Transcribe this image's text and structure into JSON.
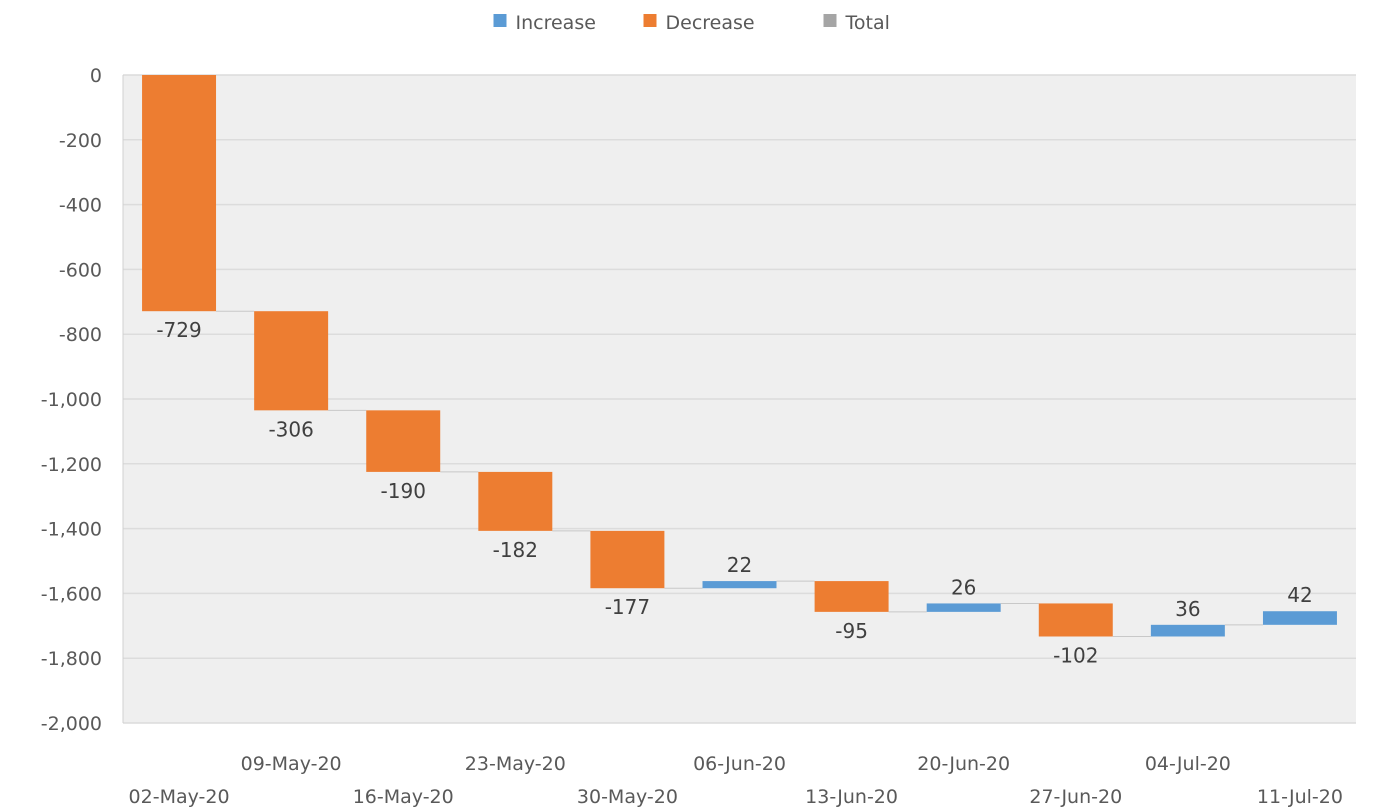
{
  "chart_data": {
    "type": "waterfall",
    "legend": [
      "Increase",
      "Decrease",
      "Total"
    ],
    "legend_position": "top",
    "colors": {
      "Increase": "#5b9bd5",
      "Decrease": "#ed7d31",
      "Total": "#a5a5a5"
    },
    "categories": [
      "02-May-20",
      "09-May-20",
      "16-May-20",
      "23-May-20",
      "30-May-20",
      "06-Jun-20",
      "13-Jun-20",
      "20-Jun-20",
      "27-Jun-20",
      "04-Jul-20",
      "11-Jul-20"
    ],
    "values": [
      -729,
      -306,
      -190,
      -182,
      -177,
      22,
      -95,
      26,
      -102,
      36,
      42
    ],
    "data_labels": [
      "-729",
      "-306",
      "-190",
      "-182",
      "-177",
      "22",
      "-95",
      "26",
      "-102",
      "36",
      "42"
    ],
    "y_ticks": [
      0,
      -200,
      -400,
      -600,
      -800,
      -1000,
      -1200,
      -1400,
      -1600,
      -1800,
      -2000
    ],
    "y_tick_labels": [
      "0",
      "-200",
      "-400",
      "-600",
      "-800",
      "-1,000",
      "-1,200",
      "-1,400",
      "-1,600",
      "-1,800",
      "-2,000"
    ],
    "ylim": [
      -2000,
      0
    ],
    "grid": true,
    "title": "",
    "xlabel": "",
    "ylabel": ""
  }
}
